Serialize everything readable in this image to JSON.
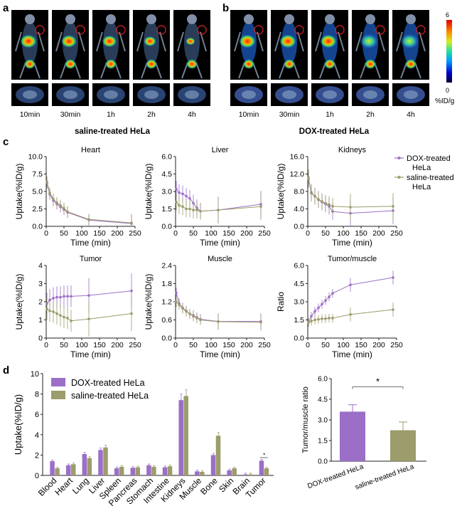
{
  "panel_letters": {
    "a": "a",
    "b": "b",
    "c": "c",
    "d": "d"
  },
  "imaging": {
    "time_labels": [
      "10min",
      "30min",
      "1h",
      "2h",
      "4h"
    ],
    "saline_caption": "saline-treated HeLa",
    "dox_caption": "DOX-treated HeLa",
    "scale_max": "6",
    "scale_min": "0",
    "scale_unit": "%ID/g"
  },
  "colors": {
    "dox": "#9b6fc8",
    "saline": "#9c9c6c"
  },
  "legend_c": {
    "dox": [
      "DOX-treated",
      "HeLa"
    ],
    "saline": [
      "saline-treated",
      "HeLa"
    ]
  },
  "chart_data": [
    {
      "type": "line",
      "title": "Heart",
      "xlabel": "Time (min)",
      "ylabel": "Uptake(%ID/g)",
      "xlim": [
        0,
        250
      ],
      "ylim": [
        0,
        10
      ],
      "yticks": [
        "0.0",
        "2.5",
        "5.0",
        "7.5",
        "10.0"
      ],
      "xticks": [
        "0",
        "50",
        "100",
        "150",
        "200",
        "250"
      ],
      "x": [
        2,
        10,
        20,
        30,
        40,
        50,
        60,
        120,
        240
      ],
      "series": [
        {
          "name": "DOX-treated HeLa",
          "values": [
            6.2,
            4.6,
            3.7,
            3.2,
            2.8,
            2.4,
            2.0,
            0.9,
            0.4
          ]
        },
        {
          "name": "saline-treated HeLa",
          "values": [
            6.4,
            4.8,
            3.9,
            3.4,
            3.0,
            2.6,
            2.1,
            1.0,
            0.5
          ]
        }
      ]
    },
    {
      "type": "line",
      "title": "Liver",
      "xlabel": "Time (min)",
      "ylabel": "Uptake(%ID/g)",
      "xlim": [
        0,
        250
      ],
      "ylim": [
        0,
        6
      ],
      "yticks": [
        "0.0",
        "1.5",
        "3.0",
        "4.5",
        "6.0"
      ],
      "xticks": [
        "0",
        "50",
        "100",
        "150",
        "200",
        "250"
      ],
      "x": [
        2,
        10,
        20,
        30,
        40,
        50,
        60,
        70,
        120,
        240
      ],
      "series": [
        {
          "name": "DOX-treated HeLa",
          "values": [
            3.2,
            2.9,
            2.8,
            2.6,
            2.4,
            2.0,
            1.6,
            1.3,
            1.4,
            1.9
          ]
        },
        {
          "name": "saline-treated HeLa",
          "values": [
            2.1,
            1.8,
            1.7,
            1.5,
            1.5,
            1.4,
            1.4,
            1.3,
            1.4,
            1.7
          ]
        }
      ]
    },
    {
      "type": "line",
      "title": "Kidneys",
      "xlabel": "Time (min)",
      "ylabel": "Uptake(%ID/g)",
      "xlim": [
        0,
        250
      ],
      "ylim": [
        0,
        16
      ],
      "yticks": [
        "0.0",
        "4.0",
        "8.0",
        "12.0",
        "16.0"
      ],
      "xticks": [
        "0",
        "50",
        "100",
        "150",
        "200",
        "250"
      ],
      "x": [
        2,
        10,
        20,
        30,
        40,
        50,
        60,
        70,
        120,
        240
      ],
      "series": [
        {
          "name": "DOX-treated HeLa",
          "values": [
            10.8,
            7.8,
            6.9,
            6.1,
            5.6,
            5.1,
            4.6,
            3.4,
            3.0,
            3.6
          ]
        },
        {
          "name": "saline-treated HeLa",
          "values": [
            11.2,
            7.6,
            6.9,
            6.2,
            5.7,
            5.3,
            5.0,
            4.6,
            4.4,
            4.6
          ]
        }
      ]
    },
    {
      "type": "line",
      "title": "Tumor",
      "xlabel": "Time (min)",
      "ylabel": "Uptake(%ID/g)",
      "xlim": [
        0,
        250
      ],
      "ylim": [
        0,
        4
      ],
      "yticks": [
        "0",
        "1",
        "2",
        "3",
        "4"
      ],
      "xticks": [
        "0",
        "50",
        "100",
        "150",
        "200",
        "250"
      ],
      "x": [
        2,
        10,
        20,
        30,
        40,
        50,
        60,
        70,
        120,
        240
      ],
      "series": [
        {
          "name": "DOX-treated HeLa",
          "values": [
            1.9,
            2.1,
            2.2,
            2.25,
            2.25,
            2.3,
            2.3,
            2.3,
            2.35,
            2.6
          ]
        },
        {
          "name": "saline-treated HeLa",
          "values": [
            1.6,
            1.5,
            1.45,
            1.35,
            1.25,
            1.15,
            1.1,
            0.95,
            1.05,
            1.35
          ]
        }
      ]
    },
    {
      "type": "line",
      "title": "Muscle",
      "xlabel": "Time (min)",
      "ylabel": "Uptake(%ID/g)",
      "xlim": [
        0,
        250
      ],
      "ylim": [
        0,
        2.4
      ],
      "yticks": [
        "0.0",
        "0.6",
        "1.2",
        "1.8",
        "2.4"
      ],
      "xticks": [
        "0",
        "50",
        "100",
        "150",
        "200",
        "250"
      ],
      "x": [
        2,
        10,
        20,
        30,
        40,
        50,
        60,
        70,
        120,
        240
      ],
      "series": [
        {
          "name": "DOX-treated HeLa",
          "values": [
            1.5,
            1.15,
            1.0,
            0.9,
            0.8,
            0.75,
            0.68,
            0.62,
            0.55,
            0.55
          ]
        },
        {
          "name": "saline-treated HeLa",
          "values": [
            1.2,
            1.1,
            0.98,
            0.88,
            0.8,
            0.72,
            0.66,
            0.6,
            0.54,
            0.52
          ]
        }
      ]
    },
    {
      "type": "line",
      "title": "Tumor/muscle",
      "xlabel": "Time (min)",
      "ylabel": "Ratio",
      "xlim": [
        0,
        250
      ],
      "ylim": [
        0,
        6
      ],
      "yticks": [
        "0.0",
        "1.5",
        "3.0",
        "4.5",
        "6.0"
      ],
      "xticks": [
        "0",
        "50",
        "100",
        "150",
        "200",
        "250"
      ],
      "x": [
        2,
        10,
        20,
        30,
        40,
        50,
        60,
        70,
        120,
        240
      ],
      "series": [
        {
          "name": "DOX-treated HeLa",
          "values": [
            1.3,
            1.8,
            2.2,
            2.5,
            2.8,
            3.1,
            3.4,
            3.7,
            4.4,
            5.0
          ]
        },
        {
          "name": "saline-treated HeLa",
          "values": [
            1.3,
            1.4,
            1.5,
            1.55,
            1.6,
            1.6,
            1.65,
            1.65,
            1.95,
            2.35
          ]
        }
      ]
    },
    {
      "type": "bar",
      "ylabel": "Uptake(%ID/g)",
      "ylim": [
        0,
        10
      ],
      "yticks": [
        "0",
        "2",
        "4",
        "6",
        "8",
        "10"
      ],
      "categories": [
        "Blood",
        "Heart",
        "Lung",
        "Liver",
        "Spleen",
        "Pancreas",
        "Stomach",
        "Intestine",
        "Kidneys",
        "Muscle",
        "Bone",
        "Skin",
        "Brain",
        "Tumor"
      ],
      "series": [
        {
          "name": "DOX-treated HeLa",
          "values": [
            1.4,
            1.0,
            2.1,
            2.5,
            0.7,
            0.75,
            1.0,
            0.8,
            7.4,
            0.4,
            2.0,
            0.5,
            0.1,
            1.45
          ]
        },
        {
          "name": "saline-treated HeLa",
          "values": [
            0.7,
            1.1,
            1.7,
            2.75,
            0.85,
            0.8,
            0.85,
            0.9,
            7.8,
            0.35,
            3.9,
            0.7,
            0.1,
            0.7
          ]
        }
      ],
      "annotation": "*"
    },
    {
      "type": "bar",
      "ylabel": "Tumor/muscle ratio",
      "ylim": [
        0,
        6
      ],
      "yticks": [
        "0.0",
        "1.5",
        "3.0",
        "4.5",
        "6.0"
      ],
      "categories": [
        "DOX-treated HeLa",
        "saline-treated HeLa"
      ],
      "values": [
        3.6,
        2.25
      ],
      "errors": [
        0.5,
        0.6
      ],
      "annotation": "*"
    }
  ]
}
